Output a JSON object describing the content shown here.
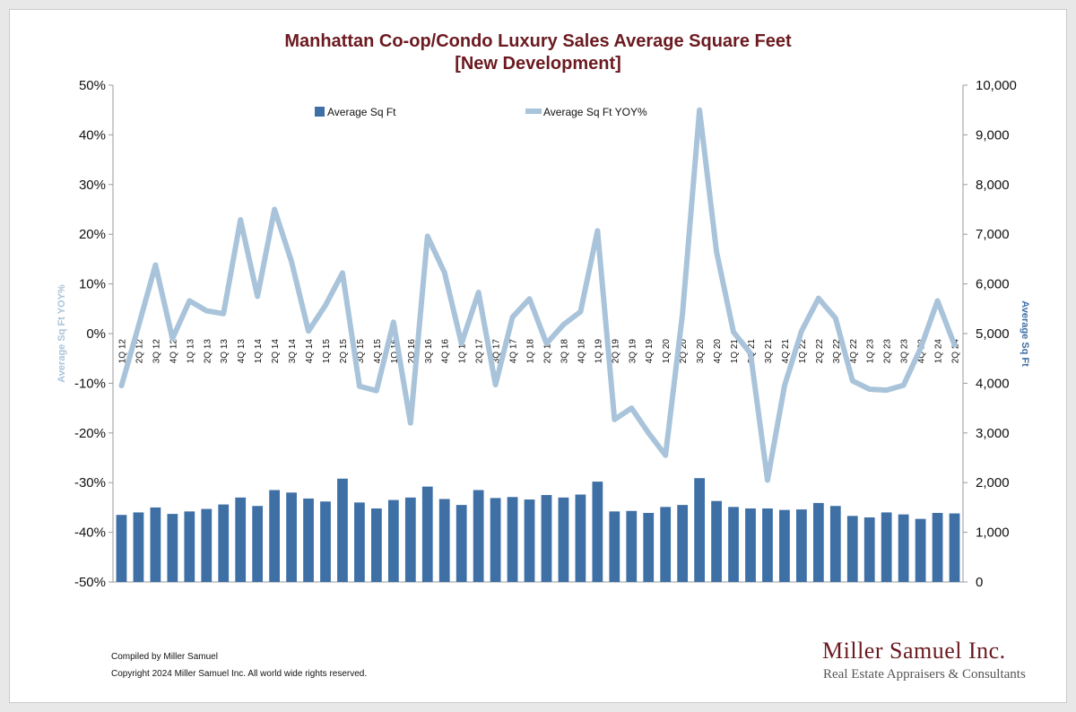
{
  "chart_data": {
    "type": "bar",
    "title": "Manhattan Co-op/Condo Luxury Sales Average Square Feet",
    "subtitle": "[New Development]",
    "categories": [
      "1Q 12",
      "2Q 12",
      "3Q 12",
      "4Q 12",
      "1Q 13",
      "2Q 13",
      "3Q 13",
      "4Q 13",
      "1Q 14",
      "2Q 14",
      "3Q 14",
      "4Q 14",
      "1Q 15",
      "2Q 15",
      "3Q 15",
      "4Q 15",
      "1Q 16",
      "2Q 16",
      "3Q 16",
      "4Q 16",
      "1Q 17",
      "2Q 17",
      "3Q 17",
      "4Q 17",
      "1Q 18",
      "2Q 18",
      "3Q 18",
      "4Q 18",
      "1Q 19",
      "2Q 19",
      "3Q 19",
      "4Q 19",
      "1Q 20",
      "2Q 20",
      "3Q 20",
      "4Q 20",
      "1Q 21",
      "2Q 21",
      "3Q 21",
      "4Q 21",
      "1Q 22",
      "2Q 22",
      "3Q 22",
      "4Q 22",
      "1Q 23",
      "2Q 23",
      "3Q 23",
      "4Q 23",
      "1Q 24",
      "2Q 24"
    ],
    "series": [
      {
        "name": "Average Sq Ft",
        "type": "bar",
        "axis": "right",
        "color": "#3e6fa5",
        "values": [
          1350,
          1400,
          1500,
          1370,
          1420,
          1470,
          1560,
          1700,
          1530,
          1850,
          1800,
          1680,
          1620,
          2080,
          1600,
          1480,
          1650,
          1700,
          1920,
          1670,
          1550,
          1850,
          1690,
          1710,
          1660,
          1750,
          1700,
          1760,
          2020,
          1420,
          1430,
          1390,
          1510,
          1550,
          2090,
          1630,
          1510,
          1480,
          1480,
          1450,
          1460,
          1590,
          1530,
          1330,
          1300,
          1400,
          1360,
          1270,
          1390,
          1380
        ]
      },
      {
        "name": "Average Sq Ft YOY%",
        "type": "line",
        "axis": "left",
        "color": "#a9c4da",
        "values": [
          -10.5,
          1.5,
          13.8,
          -1.0,
          6.6,
          4.6,
          4.0,
          22.9,
          7.5,
          25.0,
          14.5,
          0.5,
          5.7,
          12.2,
          -10.6,
          -11.5,
          2.3,
          -18.0,
          19.6,
          12.3,
          -2.0,
          8.3,
          -10.3,
          3.3,
          7.0,
          -2.0,
          1.8,
          4.4,
          20.7,
          -17.3,
          -15.0,
          -20.0,
          -24.5,
          4.0,
          45.0,
          16.5,
          0.3,
          -4.0,
          -29.5,
          -10.5,
          0.5,
          7.1,
          3.1,
          -9.5,
          -11.2,
          -11.4,
          -10.4,
          -3.0,
          6.6,
          -2.3
        ]
      }
    ],
    "y_left": {
      "label": "Average Sq Ft YOY%",
      "min": -50,
      "max": 50,
      "step": 10,
      "ticks": [
        "-50%",
        "-40%",
        "-30%",
        "-20%",
        "-10%",
        "0%",
        "10%",
        "20%",
        "30%",
        "40%",
        "50%"
      ]
    },
    "y_right": {
      "label": "Average Sq Ft",
      "min": 0,
      "max": 10000,
      "step": 1000,
      "ticks": [
        "0",
        "1,000",
        "2,000",
        "3,000",
        "4,000",
        "5,000",
        "6,000",
        "7,000",
        "8,000",
        "9,000",
        "10,000"
      ]
    },
    "legend": {
      "placement": "top-center"
    },
    "grid": false
  },
  "footer": {
    "compiled": "Compiled by Miller Samuel",
    "copyright": "Copyright 2024 Miller Samuel Inc.  All world wide rights reserved."
  },
  "logo": {
    "name": "Miller Samuel Inc.",
    "tagline": "Real Estate Appraisers & Consultants"
  }
}
